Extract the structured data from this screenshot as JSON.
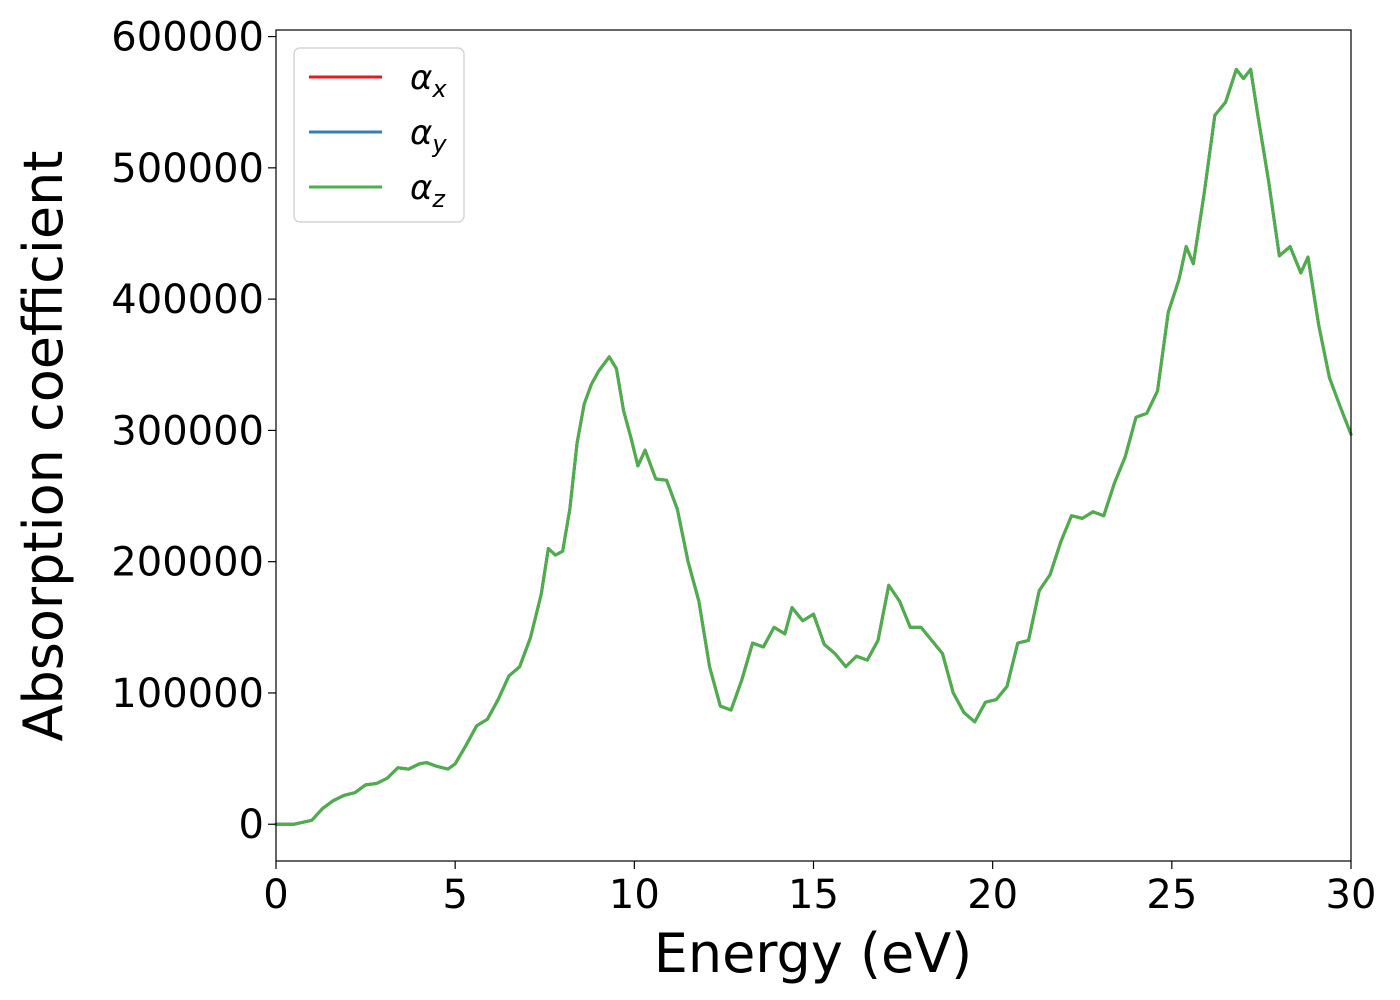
{
  "chart_data": {
    "type": "line",
    "title": "",
    "xlabel": "Energy (eV)",
    "ylabel": "Absorption coefficient",
    "xlim": [
      0,
      30
    ],
    "ylim": [
      -28000,
      605000
    ],
    "xticks": [
      0,
      5,
      10,
      15,
      20,
      25,
      30
    ],
    "xtick_labels": [
      "0",
      "5",
      "10",
      "15",
      "20",
      "25",
      "30"
    ],
    "yticks": [
      0,
      100000,
      200000,
      300000,
      400000,
      500000,
      600000
    ],
    "ytick_labels": [
      "0",
      "100000",
      "200000",
      "300000",
      "400000",
      "500000",
      "600000"
    ],
    "grid": false,
    "legend_position": "top-left",
    "series": [
      {
        "name": "α_x",
        "name_base": "α",
        "name_sub": "x",
        "color": "#e41a1c",
        "x": [
          0,
          0.5,
          1.0,
          1.3,
          1.6,
          1.9,
          2.2,
          2.5,
          2.8,
          3.1,
          3.4,
          3.7,
          4.0,
          4.2,
          4.5,
          4.8,
          5.0,
          5.3,
          5.6,
          5.9,
          6.2,
          6.5,
          6.8,
          7.1,
          7.4,
          7.6,
          7.8,
          8.0,
          8.2,
          8.4,
          8.6,
          8.8,
          9.0,
          9.3,
          9.5,
          9.7,
          9.9,
          10.1,
          10.3,
          10.6,
          10.9,
          11.2,
          11.5,
          11.8,
          12.1,
          12.4,
          12.7,
          13.0,
          13.3,
          13.6,
          13.9,
          14.2,
          14.4,
          14.7,
          15.0,
          15.3,
          15.6,
          15.9,
          16.2,
          16.5,
          16.8,
          17.1,
          17.4,
          17.7,
          18.0,
          18.3,
          18.6,
          18.9,
          19.2,
          19.5,
          19.8,
          20.1,
          20.4,
          20.7,
          21.0,
          21.3,
          21.6,
          21.9,
          22.2,
          22.5,
          22.8,
          23.1,
          23.4,
          23.7,
          24.0,
          24.3,
          24.6,
          24.9,
          25.2,
          25.4,
          25.6,
          25.9,
          26.2,
          26.5,
          26.8,
          27.0,
          27.2,
          27.4,
          27.7,
          28.0,
          28.3,
          28.6,
          28.8,
          29.1,
          29.4,
          29.7,
          30.0
        ],
        "y": [
          0,
          0,
          3000,
          12000,
          18000,
          22000,
          24000,
          30000,
          31000,
          35000,
          43000,
          42000,
          46000,
          47000,
          44000,
          42000,
          46000,
          60000,
          75000,
          80000,
          95000,
          113000,
          120000,
          142000,
          175000,
          210000,
          205000,
          208000,
          240000,
          290000,
          320000,
          335000,
          345000,
          356000,
          347000,
          315000,
          295000,
          273000,
          285000,
          263000,
          262000,
          240000,
          200000,
          170000,
          120000,
          90000,
          87000,
          110000,
          138000,
          135000,
          150000,
          145000,
          165000,
          155000,
          160000,
          137000,
          130000,
          120000,
          128000,
          125000,
          140000,
          182000,
          170000,
          150000,
          150000,
          140000,
          130000,
          100000,
          85000,
          78000,
          93000,
          95000,
          105000,
          138000,
          140000,
          178000,
          190000,
          215000,
          235000,
          233000,
          238000,
          235000,
          260000,
          280000,
          310000,
          313000,
          330000,
          390000,
          415000,
          440000,
          427000,
          480000,
          540000,
          550000,
          575000,
          568000,
          575000,
          540000,
          490000,
          433000,
          440000,
          420000,
          432000,
          380000,
          340000,
          318000,
          297000
        ]
      },
      {
        "name": "α_y",
        "name_base": "α",
        "name_sub": "y",
        "color": "#377eb8",
        "x": [
          0,
          0.5,
          1.0,
          1.3,
          1.6,
          1.9,
          2.2,
          2.5,
          2.8,
          3.1,
          3.4,
          3.7,
          4.0,
          4.2,
          4.5,
          4.8,
          5.0,
          5.3,
          5.6,
          5.9,
          6.2,
          6.5,
          6.8,
          7.1,
          7.4,
          7.6,
          7.8,
          8.0,
          8.2,
          8.4,
          8.6,
          8.8,
          9.0,
          9.3,
          9.5,
          9.7,
          9.9,
          10.1,
          10.3,
          10.6,
          10.9,
          11.2,
          11.5,
          11.8,
          12.1,
          12.4,
          12.7,
          13.0,
          13.3,
          13.6,
          13.9,
          14.2,
          14.4,
          14.7,
          15.0,
          15.3,
          15.6,
          15.9,
          16.2,
          16.5,
          16.8,
          17.1,
          17.4,
          17.7,
          18.0,
          18.3,
          18.6,
          18.9,
          19.2,
          19.5,
          19.8,
          20.1,
          20.4,
          20.7,
          21.0,
          21.3,
          21.6,
          21.9,
          22.2,
          22.5,
          22.8,
          23.1,
          23.4,
          23.7,
          24.0,
          24.3,
          24.6,
          24.9,
          25.2,
          25.4,
          25.6,
          25.9,
          26.2,
          26.5,
          26.8,
          27.0,
          27.2,
          27.4,
          27.7,
          28.0,
          28.3,
          28.6,
          28.8,
          29.1,
          29.4,
          29.7,
          30.0
        ],
        "y": [
          0,
          0,
          3000,
          12000,
          18000,
          22000,
          24000,
          30000,
          31000,
          35000,
          43000,
          42000,
          46000,
          47000,
          44000,
          42000,
          46000,
          60000,
          75000,
          80000,
          95000,
          113000,
          120000,
          142000,
          175000,
          210000,
          205000,
          208000,
          240000,
          290000,
          320000,
          335000,
          345000,
          356000,
          347000,
          315000,
          295000,
          273000,
          285000,
          263000,
          262000,
          240000,
          200000,
          170000,
          120000,
          90000,
          87000,
          110000,
          138000,
          135000,
          150000,
          145000,
          165000,
          155000,
          160000,
          137000,
          130000,
          120000,
          128000,
          125000,
          140000,
          182000,
          170000,
          150000,
          150000,
          140000,
          130000,
          100000,
          85000,
          78000,
          93000,
          95000,
          105000,
          138000,
          140000,
          178000,
          190000,
          215000,
          235000,
          233000,
          238000,
          235000,
          260000,
          280000,
          310000,
          313000,
          330000,
          390000,
          415000,
          440000,
          427000,
          480000,
          540000,
          550000,
          575000,
          568000,
          575000,
          540000,
          490000,
          433000,
          440000,
          420000,
          432000,
          380000,
          340000,
          318000,
          297000
        ]
      },
      {
        "name": "α_z",
        "name_base": "α",
        "name_sub": "z",
        "color": "#4daf4a",
        "x": [
          0,
          0.5,
          1.0,
          1.3,
          1.6,
          1.9,
          2.2,
          2.5,
          2.8,
          3.1,
          3.4,
          3.7,
          4.0,
          4.2,
          4.5,
          4.8,
          5.0,
          5.3,
          5.6,
          5.9,
          6.2,
          6.5,
          6.8,
          7.1,
          7.4,
          7.6,
          7.8,
          8.0,
          8.2,
          8.4,
          8.6,
          8.8,
          9.0,
          9.3,
          9.5,
          9.7,
          9.9,
          10.1,
          10.3,
          10.6,
          10.9,
          11.2,
          11.5,
          11.8,
          12.1,
          12.4,
          12.7,
          13.0,
          13.3,
          13.6,
          13.9,
          14.2,
          14.4,
          14.7,
          15.0,
          15.3,
          15.6,
          15.9,
          16.2,
          16.5,
          16.8,
          17.1,
          17.4,
          17.7,
          18.0,
          18.3,
          18.6,
          18.9,
          19.2,
          19.5,
          19.8,
          20.1,
          20.4,
          20.7,
          21.0,
          21.3,
          21.6,
          21.9,
          22.2,
          22.5,
          22.8,
          23.1,
          23.4,
          23.7,
          24.0,
          24.3,
          24.6,
          24.9,
          25.2,
          25.4,
          25.6,
          25.9,
          26.2,
          26.5,
          26.8,
          27.0,
          27.2,
          27.4,
          27.7,
          28.0,
          28.3,
          28.6,
          28.8,
          29.1,
          29.4,
          29.7,
          30.0
        ],
        "y": [
          0,
          0,
          3000,
          12000,
          18000,
          22000,
          24000,
          30000,
          31000,
          35000,
          43000,
          42000,
          46000,
          47000,
          44000,
          42000,
          46000,
          60000,
          75000,
          80000,
          95000,
          113000,
          120000,
          142000,
          175000,
          210000,
          205000,
          208000,
          240000,
          290000,
          320000,
          335000,
          345000,
          356000,
          347000,
          315000,
          295000,
          273000,
          285000,
          263000,
          262000,
          240000,
          200000,
          170000,
          120000,
          90000,
          87000,
          110000,
          138000,
          135000,
          150000,
          145000,
          165000,
          155000,
          160000,
          137000,
          130000,
          120000,
          128000,
          125000,
          140000,
          182000,
          170000,
          150000,
          150000,
          140000,
          130000,
          100000,
          85000,
          78000,
          93000,
          95000,
          105000,
          138000,
          140000,
          178000,
          190000,
          215000,
          235000,
          233000,
          238000,
          235000,
          260000,
          280000,
          310000,
          313000,
          330000,
          390000,
          415000,
          440000,
          427000,
          480000,
          540000,
          550000,
          575000,
          568000,
          575000,
          540000,
          490000,
          433000,
          440000,
          420000,
          432000,
          380000,
          340000,
          318000,
          297000
        ]
      }
    ]
  }
}
